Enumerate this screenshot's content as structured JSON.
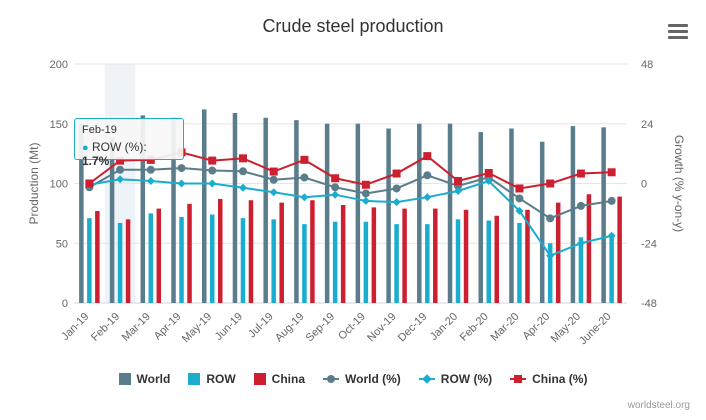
{
  "chart_data": {
    "type": "bar",
    "title": "Crude steel production",
    "categories": [
      "Jan-19",
      "Feb-19",
      "Mar-19",
      "Apr-19",
      "May-19",
      "Jun-19",
      "Jul-19",
      "Aug-19",
      "Sep-19",
      "Oct-19",
      "Nov-19",
      "Dec-19",
      "Jan-20",
      "Feb-20",
      "Mar-20",
      "Apr-20",
      "May-20",
      "June-20"
    ],
    "ylabel": "Production (Mt)",
    "ylim": [
      0,
      200
    ],
    "yticks": [
      0,
      50,
      100,
      150,
      200
    ],
    "y2label": "Growth (% y-on-y)",
    "y2lim": [
      -48,
      48
    ],
    "y2ticks": [
      -48,
      -24,
      0,
      24,
      48
    ],
    "grid": true,
    "legend_position": "bottom",
    "series": [
      {
        "name": "World",
        "kind": "bar",
        "axis": "left",
        "color": "#5b7c8b",
        "values": [
          150,
          138,
          157,
          155,
          162,
          159,
          155,
          153,
          150,
          150,
          146,
          150,
          150,
          143,
          146,
          135,
          148,
          147
        ]
      },
      {
        "name": "ROW",
        "kind": "bar",
        "axis": "left",
        "color": "#1aadce",
        "values": [
          71,
          67,
          75,
          72,
          74,
          71,
          70,
          66,
          68,
          68,
          66,
          66,
          70,
          69,
          67,
          50,
          55,
          58
        ]
      },
      {
        "name": "China",
        "kind": "bar",
        "axis": "left",
        "color": "#cc1f2f",
        "values": [
          77,
          70,
          79,
          83,
          87,
          86,
          84,
          86,
          82,
          80,
          79,
          79,
          78,
          73,
          78,
          84,
          91,
          89
        ]
      },
      {
        "name": "World (%)",
        "kind": "line",
        "axis": "right",
        "color": "#5b7c8b",
        "marker": "circle",
        "values": [
          -1.5,
          5.5,
          5.5,
          6.2,
          5.2,
          4.9,
          1.5,
          2.4,
          -1.5,
          -4.0,
          -2.0,
          3.3,
          -1.0,
          2.5,
          -6.0,
          -14.0,
          -9.0,
          -7.0
        ]
      },
      {
        "name": "ROW (%)",
        "kind": "line",
        "axis": "right",
        "color": "#1aadce",
        "marker": "diamond",
        "values": [
          -0.5,
          1.7,
          1.0,
          0.0,
          0.0,
          -1.7,
          -3.5,
          -5.5,
          -4.5,
          -7.0,
          -7.5,
          -5.5,
          -3.0,
          1.0,
          -11.0,
          -29.0,
          -24.0,
          -21.0
        ]
      },
      {
        "name": "China (%)",
        "kind": "line",
        "axis": "right",
        "color": "#cc1f2f",
        "marker": "square",
        "values": [
          0.0,
          9.2,
          9.5,
          12.5,
          9.2,
          10.1,
          4.8,
          9.5,
          2.1,
          -0.5,
          4.0,
          11.0,
          1.0,
          4.2,
          -2.0,
          0.0,
          4.0,
          4.5
        ]
      }
    ],
    "tooltip": {
      "category": "Feb-19",
      "series_label": "ROW (%):",
      "value": "1.7%"
    }
  },
  "credit": "worldsteel.org",
  "legend": [
    {
      "label": "World",
      "symbol": "bar",
      "color": "#5b7c8b"
    },
    {
      "label": "ROW",
      "symbol": "bar",
      "color": "#1aadce"
    },
    {
      "label": "China",
      "symbol": "bar",
      "color": "#cc1f2f"
    },
    {
      "label": "World (%)",
      "symbol": "circle",
      "color": "#5b7c8b"
    },
    {
      "label": "ROW (%)",
      "symbol": "diamond",
      "color": "#1aadce"
    },
    {
      "label": "China (%)",
      "symbol": "square",
      "color": "#cc1f2f"
    }
  ],
  "menu_icon": "hamburger-icon",
  "highlight_category": "Feb-19"
}
